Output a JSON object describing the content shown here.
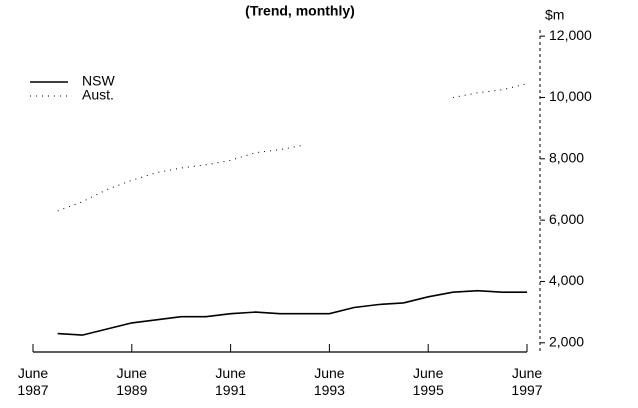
{
  "chart_data": {
    "type": "line",
    "title": "(Trend, monthly)",
    "y_unit": "$m",
    "x": [
      "1987-12",
      "1988-06",
      "1988-12",
      "1989-06",
      "1989-12",
      "1990-06",
      "1990-12",
      "1991-06",
      "1991-12",
      "1992-06",
      "1992-12",
      "1993-06",
      "1993-12",
      "1994-06",
      "1994-12",
      "1995-06",
      "1995-12",
      "1996-06",
      "1996-12",
      "1997-06"
    ],
    "series": [
      {
        "name": "NSW",
        "color": "#000000",
        "style": "solid",
        "values": [
          2300,
          2250,
          2450,
          2650,
          2750,
          2850,
          2850,
          2950,
          3000,
          2950,
          2950,
          2950,
          3150,
          3250,
          3300,
          3500,
          3650,
          3700,
          3650,
          3650
        ]
      },
      {
        "name": "Aust.",
        "color": "#000000",
        "style": "dotted",
        "values": [
          6300,
          6600,
          7000,
          7300,
          7550,
          7700,
          7800,
          7950,
          8200,
          8300,
          8450,
          null,
          null,
          null,
          null,
          null,
          10000,
          10150,
          10250,
          10450
        ]
      }
    ],
    "xlim": [
      "1987-06",
      "1997-06"
    ],
    "xticks": [
      {
        "value": "1987-06",
        "label": "June 1987"
      },
      {
        "value": "1989-06",
        "label": "June 1989"
      },
      {
        "value": "1991-06",
        "label": "June 1991"
      },
      {
        "value": "1993-06",
        "label": "June 1993"
      },
      {
        "value": "1995-06",
        "label": "June 1995"
      },
      {
        "value": "1997-06",
        "label": "June 1997"
      }
    ],
    "ylim": [
      1700,
      12200
    ],
    "yticks": [
      {
        "value": 2000,
        "label": "2,000"
      },
      {
        "value": 4000,
        "label": "4,000"
      },
      {
        "value": 6000,
        "label": "6,000"
      },
      {
        "value": 8000,
        "label": "8,000"
      },
      {
        "value": 10000,
        "label": "10,000"
      },
      {
        "value": 12000,
        "label": "12,000"
      }
    ],
    "legend": "top-left",
    "grid": false
  }
}
